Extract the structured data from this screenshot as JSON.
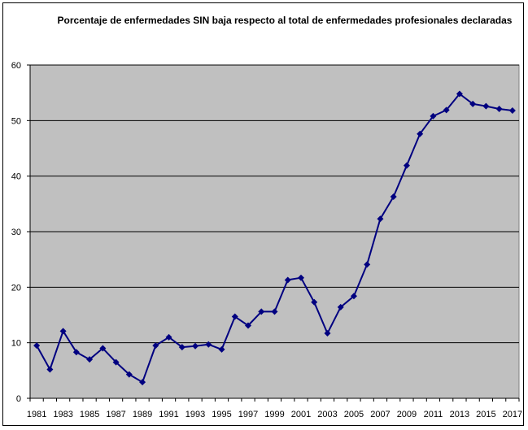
{
  "chart_data": {
    "type": "line",
    "title": "Porcentaje de enfermedades SIN baja respecto al total de enfermedades profesionales declaradas",
    "xlabel": "",
    "ylabel": "",
    "x": [
      1981,
      1982,
      1983,
      1984,
      1985,
      1986,
      1987,
      1988,
      1989,
      1990,
      1991,
      1992,
      1993,
      1994,
      1995,
      1996,
      1997,
      1998,
      1999,
      2000,
      2001,
      2002,
      2003,
      2004,
      2005,
      2006,
      2007,
      2008,
      2009,
      2010,
      2011,
      2012,
      2013,
      2014,
      2015,
      2016,
      2017
    ],
    "series": [
      {
        "values": [
          9.5,
          5.2,
          12.1,
          8.3,
          7.0,
          9.0,
          6.5,
          4.3,
          2.9,
          9.5,
          11.0,
          9.2,
          9.4,
          9.7,
          8.8,
          14.7,
          13.1,
          15.6,
          15.6,
          21.3,
          21.7,
          17.3,
          11.7,
          16.4,
          18.4,
          24.1,
          32.3,
          36.3,
          41.9,
          47.6,
          50.8,
          51.9,
          54.8,
          53.0,
          52.6,
          52.1,
          51.8
        ]
      }
    ],
    "xticks": [
      "1981",
      "1983",
      "1985",
      "1987",
      "1989",
      "1991",
      "1993",
      "1995",
      "1997",
      "1999",
      "2001",
      "2003",
      "2005",
      "2007",
      "2009",
      "2011",
      "2013",
      "2015",
      "2017"
    ],
    "yticks": [
      "0",
      "10",
      "20",
      "30",
      "40",
      "50",
      "60"
    ],
    "ylim": [
      0,
      60
    ],
    "grid": true,
    "legend": "none",
    "colors": {
      "plot_background": "#c0c0c0",
      "line": "#000080",
      "gridline": "#000000"
    }
  }
}
